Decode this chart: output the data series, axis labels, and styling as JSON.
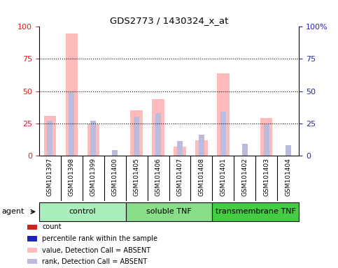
{
  "title": "GDS2773 / 1430324_x_at",
  "samples": [
    "GSM101397",
    "GSM101398",
    "GSM101399",
    "GSM101400",
    "GSM101405",
    "GSM101406",
    "GSM101407",
    "GSM101408",
    "GSM101401",
    "GSM101402",
    "GSM101403",
    "GSM101404"
  ],
  "groups": [
    {
      "label": "control",
      "color": "#aaeebb",
      "samples": [
        "GSM101397",
        "GSM101398",
        "GSM101399",
        "GSM101400"
      ]
    },
    {
      "label": "soluble TNF",
      "color": "#88dd88",
      "samples": [
        "GSM101405",
        "GSM101406",
        "GSM101407",
        "GSM101408"
      ]
    },
    {
      "label": "transmembrane TNF",
      "color": "#44cc44",
      "samples": [
        "GSM101401",
        "GSM101402",
        "GSM101403",
        "GSM101404"
      ]
    }
  ],
  "absent_value_bars": [
    31,
    95,
    24,
    0,
    35,
    44,
    7,
    12,
    64,
    0,
    29,
    0
  ],
  "absent_rank_bars": [
    27,
    49,
    27,
    4,
    30,
    33,
    11,
    16,
    34,
    9,
    24,
    8
  ],
  "count_values": [
    0,
    0,
    0,
    0,
    0,
    0,
    0,
    0,
    0,
    0,
    0,
    0
  ],
  "percentile_values": [
    0,
    0,
    0,
    0,
    0,
    0,
    0,
    0,
    0,
    0,
    0,
    0
  ],
  "ylim": [
    0,
    100
  ],
  "yticks": [
    0,
    25,
    50,
    75,
    100
  ],
  "count_color": "#cc2222",
  "percentile_color": "#2222bb",
  "absent_value_color": "#ffbbbb",
  "absent_rank_color": "#bbbbdd",
  "left_axis_color": "#cc2222",
  "right_axis_color": "#2222bb",
  "background_color": "#ffffff",
  "plot_bg_color": "#ffffff",
  "col_bg_color": "#cccccc",
  "legend_labels": [
    "count",
    "percentile rank within the sample",
    "value, Detection Call = ABSENT",
    "rank, Detection Call = ABSENT"
  ],
  "legend_colors": [
    "#cc2222",
    "#2222bb",
    "#ffbbbb",
    "#bbbbdd"
  ]
}
